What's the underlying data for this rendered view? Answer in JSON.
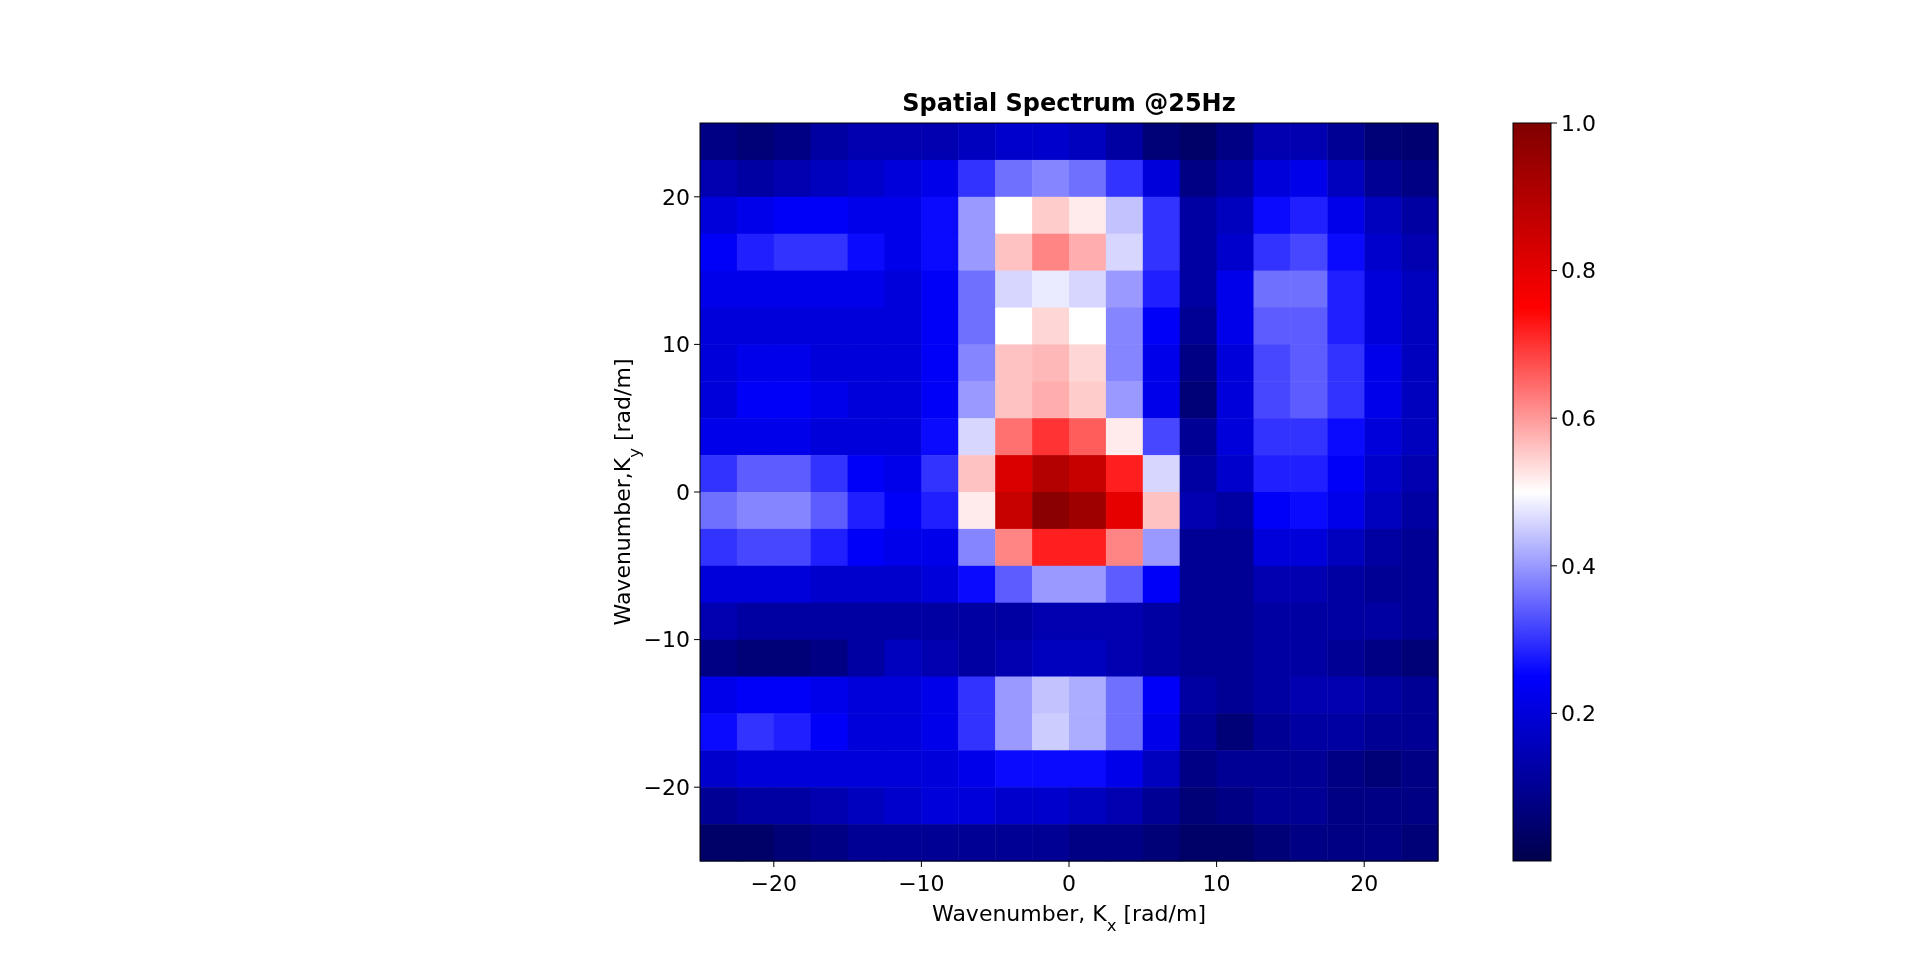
{
  "chart_data": {
    "type": "heatmap",
    "title": "Spatial Spectrum @25Hz",
    "xlabel": "Wavenumber, K$_{x}$ [rad/m]",
    "ylabel": "Wavenumber,K$_{y}$ [rad/m]",
    "xlim": [
      -25,
      25
    ],
    "ylim": [
      -25,
      25
    ],
    "xticks": [
      {
        "value": -20,
        "label": "−20"
      },
      {
        "value": -10,
        "label": "−10"
      },
      0,
      10,
      20
    ],
    "yticks": [
      {
        "value": -20,
        "label": "−20"
      },
      {
        "value": -10,
        "label": "−10"
      },
      0,
      10,
      20
    ],
    "clim": [
      0,
      1
    ],
    "cticks": [
      {
        "value": 0.2,
        "label": "0.2"
      },
      {
        "value": 0.4,
        "label": "0.4"
      },
      {
        "value": 0.6,
        "label": "0.6"
      },
      {
        "value": 0.8,
        "label": "0.8"
      },
      {
        "value": 1.0,
        "label": "1.0"
      }
    ],
    "cells": [
      [
        0.08,
        0.06,
        0.08,
        0.12,
        0.14,
        0.14,
        0.14,
        0.16,
        0.18,
        0.18,
        0.16,
        0.12,
        0.06,
        0.04,
        0.08,
        0.14,
        0.14,
        0.1,
        0.06,
        0.05
      ],
      [
        0.14,
        0.12,
        0.14,
        0.16,
        0.18,
        0.2,
        0.22,
        0.3,
        0.36,
        0.38,
        0.36,
        0.3,
        0.2,
        0.08,
        0.12,
        0.2,
        0.22,
        0.16,
        0.1,
        0.08
      ],
      [
        0.2,
        0.22,
        0.24,
        0.24,
        0.22,
        0.22,
        0.26,
        0.4,
        0.5,
        0.55,
        0.52,
        0.44,
        0.3,
        0.12,
        0.16,
        0.26,
        0.28,
        0.22,
        0.16,
        0.12
      ],
      [
        0.24,
        0.28,
        0.3,
        0.3,
        0.26,
        0.22,
        0.26,
        0.4,
        0.56,
        0.62,
        0.58,
        0.46,
        0.3,
        0.12,
        0.18,
        0.3,
        0.32,
        0.26,
        0.18,
        0.14
      ],
      [
        0.22,
        0.22,
        0.22,
        0.22,
        0.22,
        0.2,
        0.24,
        0.36,
        0.46,
        0.48,
        0.46,
        0.4,
        0.28,
        0.12,
        0.22,
        0.36,
        0.36,
        0.28,
        0.2,
        0.16
      ],
      [
        0.2,
        0.2,
        0.2,
        0.2,
        0.2,
        0.2,
        0.24,
        0.36,
        0.5,
        0.54,
        0.5,
        0.38,
        0.24,
        0.1,
        0.22,
        0.34,
        0.34,
        0.28,
        0.2,
        0.16
      ],
      [
        0.2,
        0.22,
        0.22,
        0.2,
        0.2,
        0.2,
        0.24,
        0.38,
        0.56,
        0.57,
        0.54,
        0.38,
        0.22,
        0.08,
        0.2,
        0.32,
        0.34,
        0.3,
        0.22,
        0.16
      ],
      [
        0.2,
        0.24,
        0.24,
        0.22,
        0.2,
        0.2,
        0.24,
        0.4,
        0.56,
        0.58,
        0.55,
        0.4,
        0.22,
        0.06,
        0.2,
        0.32,
        0.34,
        0.3,
        0.22,
        0.16
      ],
      [
        0.22,
        0.22,
        0.22,
        0.2,
        0.2,
        0.2,
        0.26,
        0.46,
        0.64,
        0.7,
        0.66,
        0.52,
        0.32,
        0.1,
        0.2,
        0.3,
        0.3,
        0.26,
        0.2,
        0.16
      ],
      [
        0.3,
        0.34,
        0.34,
        0.3,
        0.24,
        0.22,
        0.3,
        0.56,
        0.82,
        0.9,
        0.86,
        0.72,
        0.46,
        0.12,
        0.18,
        0.28,
        0.28,
        0.24,
        0.18,
        0.14
      ],
      [
        0.36,
        0.38,
        0.38,
        0.34,
        0.28,
        0.24,
        0.28,
        0.52,
        0.86,
        0.98,
        0.94,
        0.8,
        0.56,
        0.14,
        0.12,
        0.24,
        0.26,
        0.22,
        0.16,
        0.12
      ],
      [
        0.3,
        0.32,
        0.32,
        0.28,
        0.24,
        0.22,
        0.22,
        0.38,
        0.62,
        0.72,
        0.72,
        0.62,
        0.4,
        0.1,
        0.1,
        0.2,
        0.2,
        0.16,
        0.12,
        0.1
      ],
      [
        0.2,
        0.2,
        0.2,
        0.18,
        0.18,
        0.18,
        0.2,
        0.26,
        0.34,
        0.4,
        0.4,
        0.34,
        0.24,
        0.1,
        0.1,
        0.14,
        0.14,
        0.12,
        0.1,
        0.1
      ],
      [
        0.14,
        0.12,
        0.12,
        0.12,
        0.12,
        0.12,
        0.12,
        0.12,
        0.12,
        0.14,
        0.14,
        0.14,
        0.12,
        0.1,
        0.1,
        0.12,
        0.12,
        0.12,
        0.12,
        0.1
      ],
      [
        0.08,
        0.06,
        0.06,
        0.08,
        0.12,
        0.16,
        0.14,
        0.12,
        0.14,
        0.16,
        0.16,
        0.14,
        0.12,
        0.1,
        0.1,
        0.12,
        0.12,
        0.1,
        0.08,
        0.06
      ],
      [
        0.22,
        0.24,
        0.24,
        0.22,
        0.2,
        0.2,
        0.22,
        0.3,
        0.4,
        0.44,
        0.42,
        0.36,
        0.24,
        0.12,
        0.1,
        0.12,
        0.14,
        0.14,
        0.12,
        0.1
      ],
      [
        0.26,
        0.3,
        0.28,
        0.24,
        0.2,
        0.2,
        0.22,
        0.3,
        0.4,
        0.45,
        0.42,
        0.36,
        0.22,
        0.1,
        0.06,
        0.1,
        0.12,
        0.12,
        0.1,
        0.1
      ],
      [
        0.18,
        0.2,
        0.2,
        0.2,
        0.2,
        0.2,
        0.2,
        0.22,
        0.26,
        0.26,
        0.26,
        0.22,
        0.16,
        0.08,
        0.1,
        0.1,
        0.1,
        0.08,
        0.06,
        0.08
      ],
      [
        0.1,
        0.12,
        0.12,
        0.14,
        0.16,
        0.18,
        0.2,
        0.2,
        0.18,
        0.18,
        0.16,
        0.14,
        0.1,
        0.06,
        0.08,
        0.1,
        0.1,
        0.08,
        0.08,
        0.08
      ],
      [
        0.04,
        0.04,
        0.06,
        0.08,
        0.1,
        0.1,
        0.1,
        0.1,
        0.1,
        0.1,
        0.08,
        0.08,
        0.06,
        0.04,
        0.04,
        0.06,
        0.08,
        0.08,
        0.08,
        0.06
      ]
    ]
  }
}
